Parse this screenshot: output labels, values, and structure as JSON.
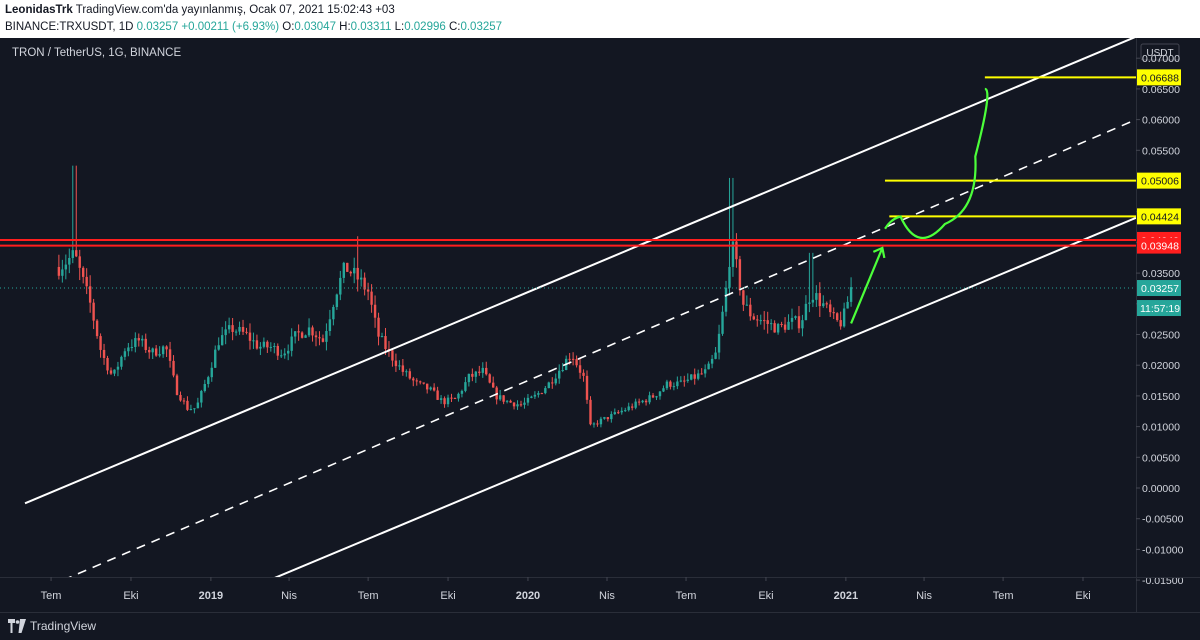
{
  "header": {
    "author": "LeonidasTrk",
    "published": "TradingView.com'da yayınlanmış, Ocak 07, 2021 15:02:43 +03",
    "symbol": "BINANCE:TRXUSDT, 1D",
    "last": "0.03257",
    "change": "+0.00211 (+6.93%)",
    "o_label": "O:",
    "o_value": "0.03047",
    "h_label": "H:",
    "h_value": "0.03311",
    "l_label": "L:",
    "l_value": "0.02996",
    "c_label": "C:",
    "c_value": "0.03257"
  },
  "footer": {
    "brand": "TradingView"
  },
  "colors": {
    "background": "#131722",
    "up": "#26a69a",
    "down": "#ef5350",
    "resistance": "#ff1e1e",
    "target": "#ffff00",
    "projection": "#4cff3a",
    "channel": "#ffffff",
    "axis_text": "#d1d4dc"
  },
  "chart_data": {
    "type": "candlestick",
    "title": "TRON / TetherUS, 1G, BINANCE",
    "currency": "USDT",
    "ylim": [
      -0.0155,
      0.0725
    ],
    "y_ticks": [
      "0.07000",
      "0.06500",
      "0.06000",
      "0.05500",
      "0.05000",
      "0.04500",
      "0.04000",
      "0.03500",
      "0.03000",
      "0.02500",
      "0.02000",
      "0.01500",
      "0.01000",
      "0.00500",
      "0.00000",
      "-0.00500",
      "-0.01000",
      "-0.01500"
    ],
    "x_range": [
      "2018-06-01",
      "2021-12-01"
    ],
    "x_ticks": [
      {
        "date": "2018-07-01",
        "label": "Tem"
      },
      {
        "date": "2018-10-01",
        "label": "Eki"
      },
      {
        "date": "2019-01-01",
        "label": "2019"
      },
      {
        "date": "2019-04-01",
        "label": "Nis"
      },
      {
        "date": "2019-07-01",
        "label": "Tem"
      },
      {
        "date": "2019-10-01",
        "label": "Eki"
      },
      {
        "date": "2020-01-01",
        "label": "2020"
      },
      {
        "date": "2020-04-01",
        "label": "Nis"
      },
      {
        "date": "2020-07-01",
        "label": "Tem"
      },
      {
        "date": "2020-10-01",
        "label": "Eki"
      },
      {
        "date": "2021-01-01",
        "label": "2021"
      },
      {
        "date": "2021-04-01",
        "label": "Nis"
      },
      {
        "date": "2021-07-01",
        "label": "Tem"
      },
      {
        "date": "2021-10-01",
        "label": "Eki"
      }
    ],
    "price_path": [
      {
        "date": "2018-07-10",
        "price": 0.036
      },
      {
        "date": "2018-07-28",
        "price": 0.038
      },
      {
        "date": "2018-08-15",
        "price": 0.03
      },
      {
        "date": "2018-08-28",
        "price": 0.022
      },
      {
        "date": "2018-09-10",
        "price": 0.018
      },
      {
        "date": "2018-09-25",
        "price": 0.023
      },
      {
        "date": "2018-10-10",
        "price": 0.024
      },
      {
        "date": "2018-10-25",
        "price": 0.022
      },
      {
        "date": "2018-11-10",
        "price": 0.023
      },
      {
        "date": "2018-11-22",
        "price": 0.016
      },
      {
        "date": "2018-12-05",
        "price": 0.013
      },
      {
        "date": "2018-12-15",
        "price": 0.013
      },
      {
        "date": "2018-12-28",
        "price": 0.018
      },
      {
        "date": "2019-01-10",
        "price": 0.024
      },
      {
        "date": "2019-01-25",
        "price": 0.026
      },
      {
        "date": "2019-02-10",
        "price": 0.025
      },
      {
        "date": "2019-02-25",
        "price": 0.023
      },
      {
        "date": "2019-03-10",
        "price": 0.023
      },
      {
        "date": "2019-03-25",
        "price": 0.022
      },
      {
        "date": "2019-04-10",
        "price": 0.025
      },
      {
        "date": "2019-04-25",
        "price": 0.026
      },
      {
        "date": "2019-05-10",
        "price": 0.024
      },
      {
        "date": "2019-05-25",
        "price": 0.032
      },
      {
        "date": "2019-06-05",
        "price": 0.036
      },
      {
        "date": "2019-06-20",
        "price": 0.034
      },
      {
        "date": "2019-07-01",
        "price": 0.032
      },
      {
        "date": "2019-07-12",
        "price": 0.025
      },
      {
        "date": "2019-07-25",
        "price": 0.022
      },
      {
        "date": "2019-08-10",
        "price": 0.019
      },
      {
        "date": "2019-08-25",
        "price": 0.017
      },
      {
        "date": "2019-09-10",
        "price": 0.016
      },
      {
        "date": "2019-09-25",
        "price": 0.014
      },
      {
        "date": "2019-10-10",
        "price": 0.0145
      },
      {
        "date": "2019-10-25",
        "price": 0.018
      },
      {
        "date": "2019-11-10",
        "price": 0.019
      },
      {
        "date": "2019-11-25",
        "price": 0.015
      },
      {
        "date": "2019-12-10",
        "price": 0.014
      },
      {
        "date": "2019-12-25",
        "price": 0.0135
      },
      {
        "date": "2020-01-10",
        "price": 0.015
      },
      {
        "date": "2020-01-25",
        "price": 0.017
      },
      {
        "date": "2020-02-10",
        "price": 0.02
      },
      {
        "date": "2020-02-20",
        "price": 0.022
      },
      {
        "date": "2020-03-05",
        "price": 0.018
      },
      {
        "date": "2020-03-13",
        "price": 0.01
      },
      {
        "date": "2020-03-25",
        "price": 0.011
      },
      {
        "date": "2020-04-10",
        "price": 0.012
      },
      {
        "date": "2020-04-25",
        "price": 0.013
      },
      {
        "date": "2020-05-10",
        "price": 0.014
      },
      {
        "date": "2020-05-25",
        "price": 0.015
      },
      {
        "date": "2020-06-10",
        "price": 0.017
      },
      {
        "date": "2020-06-25",
        "price": 0.017
      },
      {
        "date": "2020-07-10",
        "price": 0.018
      },
      {
        "date": "2020-07-25",
        "price": 0.019
      },
      {
        "date": "2020-08-05",
        "price": 0.022
      },
      {
        "date": "2020-08-15",
        "price": 0.031
      },
      {
        "date": "2020-08-22",
        "price": 0.04
      },
      {
        "date": "2020-08-28",
        "price": 0.036
      },
      {
        "date": "2020-09-05",
        "price": 0.03
      },
      {
        "date": "2020-09-15",
        "price": 0.028
      },
      {
        "date": "2020-09-30",
        "price": 0.027
      },
      {
        "date": "2020-10-15",
        "price": 0.026
      },
      {
        "date": "2020-10-30",
        "price": 0.027
      },
      {
        "date": "2020-11-10",
        "price": 0.027
      },
      {
        "date": "2020-11-22",
        "price": 0.032
      },
      {
        "date": "2020-12-05",
        "price": 0.03
      },
      {
        "date": "2020-12-20",
        "price": 0.027
      },
      {
        "date": "2020-12-28",
        "price": 0.027
      },
      {
        "date": "2021-01-07",
        "price": 0.0326
      }
    ],
    "spikes": [
      {
        "date": "2018-07-28",
        "price": 0.0525
      },
      {
        "date": "2019-06-20",
        "price": 0.041
      },
      {
        "date": "2020-08-22",
        "price": 0.0505
      },
      {
        "date": "2020-11-22",
        "price": 0.0383
      }
    ],
    "channel_upper": [
      {
        "date": "2018-06-01",
        "price": -0.0025
      },
      {
        "date": "2021-12-01",
        "price": 0.0735
      }
    ],
    "channel_mid_dashed": [
      {
        "date": "2018-07-15",
        "price": -0.015
      },
      {
        "date": "2021-12-01",
        "price": 0.06
      }
    ],
    "channel_lower": [
      {
        "date": "2019-03-01",
        "price": -0.0155
      },
      {
        "date": "2021-12-01",
        "price": 0.044
      }
    ],
    "horizontal_levels": [
      {
        "price": 0.0404,
        "label": "0.04040",
        "color": "#ff1e1e"
      },
      {
        "price": 0.03948,
        "label": "0.03948",
        "color": "#ff1e1e"
      },
      {
        "price": 0.04424,
        "label": "0.04424",
        "color": "#ffff00",
        "from": "2021-02-20"
      },
      {
        "price": 0.05006,
        "label": "0.05006",
        "color": "#ffff00",
        "from": "2021-02-15"
      },
      {
        "price": 0.06688,
        "label": "0.06688",
        "color": "#ffff00",
        "from": "2021-06-10"
      }
    ],
    "current_price": {
      "price": 0.03257,
      "label": "0.03257",
      "countdown": "11:57:19"
    },
    "projection": [
      {
        "date": "2021-01-07",
        "price": 0.0268
      },
      {
        "date": "2021-02-12",
        "price": 0.0391
      },
      {
        "date": "2021-02-22",
        "price": 0.0432
      },
      {
        "date": "2021-03-05",
        "price": 0.0442
      },
      {
        "date": "2021-03-25",
        "price": 0.0415
      },
      {
        "date": "2021-04-25",
        "price": 0.043
      },
      {
        "date": "2021-05-15",
        "price": 0.047
      },
      {
        "date": "2021-05-30",
        "price": 0.054
      },
      {
        "date": "2021-06-10",
        "price": 0.065
      }
    ]
  }
}
